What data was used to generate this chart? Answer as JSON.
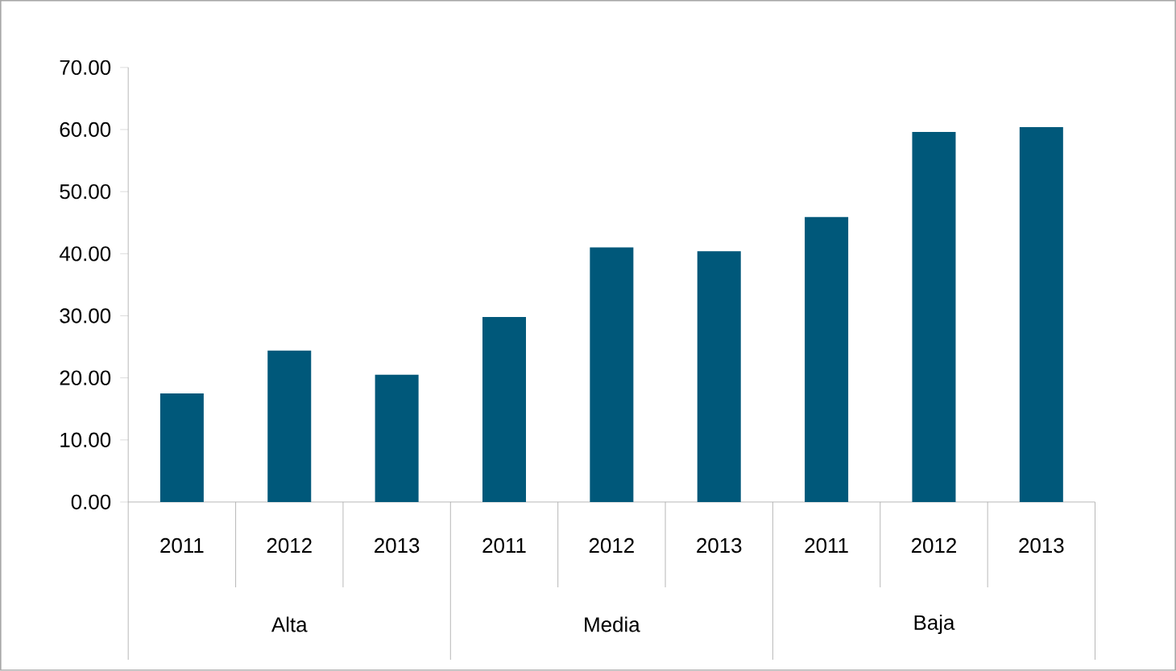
{
  "chart_data": {
    "type": "bar",
    "categories": [
      "2011",
      "2012",
      "2013",
      "2011",
      "2012",
      "2013",
      "2011",
      "2012",
      "2013"
    ],
    "annotations": [
      "Alta",
      "Media",
      "Baja"
    ],
    "values": [
      17.5,
      24.4,
      20.5,
      29.8,
      41.0,
      40.4,
      45.9,
      59.6,
      60.4
    ],
    "color": "#00587a",
    "ylim": [
      0,
      70
    ],
    "yticks": [
      {
        "value": 0,
        "label": "0.00"
      },
      {
        "value": 10,
        "label": "10.00"
      },
      {
        "value": 20,
        "label": "20.00"
      },
      {
        "value": 30,
        "label": "30.00"
      },
      {
        "value": 40,
        "label": "40.00"
      },
      {
        "value": 50,
        "label": "50.00"
      },
      {
        "value": 60,
        "label": "60.00"
      },
      {
        "value": 70,
        "label": "70.00"
      }
    ],
    "grid": false
  }
}
